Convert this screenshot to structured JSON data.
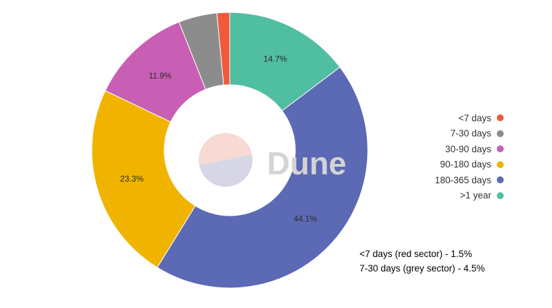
{
  "chart_data": {
    "type": "pie",
    "donut": true,
    "categories": [
      "<7 days",
      "7-30 days",
      "30-90 days",
      "90-180 days",
      "180-365 days",
      ">1 year"
    ],
    "values": [
      1.5,
      4.5,
      11.9,
      23.3,
      44.1,
      14.7
    ],
    "data_labels": [
      "",
      "",
      "11.9%",
      "23.3%",
      "44.1%",
      "14.7%"
    ],
    "colors": [
      "#f05a3c",
      "#8c8c8c",
      "#c85fb4",
      "#f0b400",
      "#5c69b4",
      "#50bea0"
    ],
    "legend_position": "right"
  },
  "watermark": {
    "text": "Dune",
    "colors": [
      "#f9d9d4",
      "#d6d6e6"
    ]
  },
  "notes": [
    "<7 days (red sector) - 1.5%",
    "7-30 days (grey sector) - 4.5%"
  ]
}
